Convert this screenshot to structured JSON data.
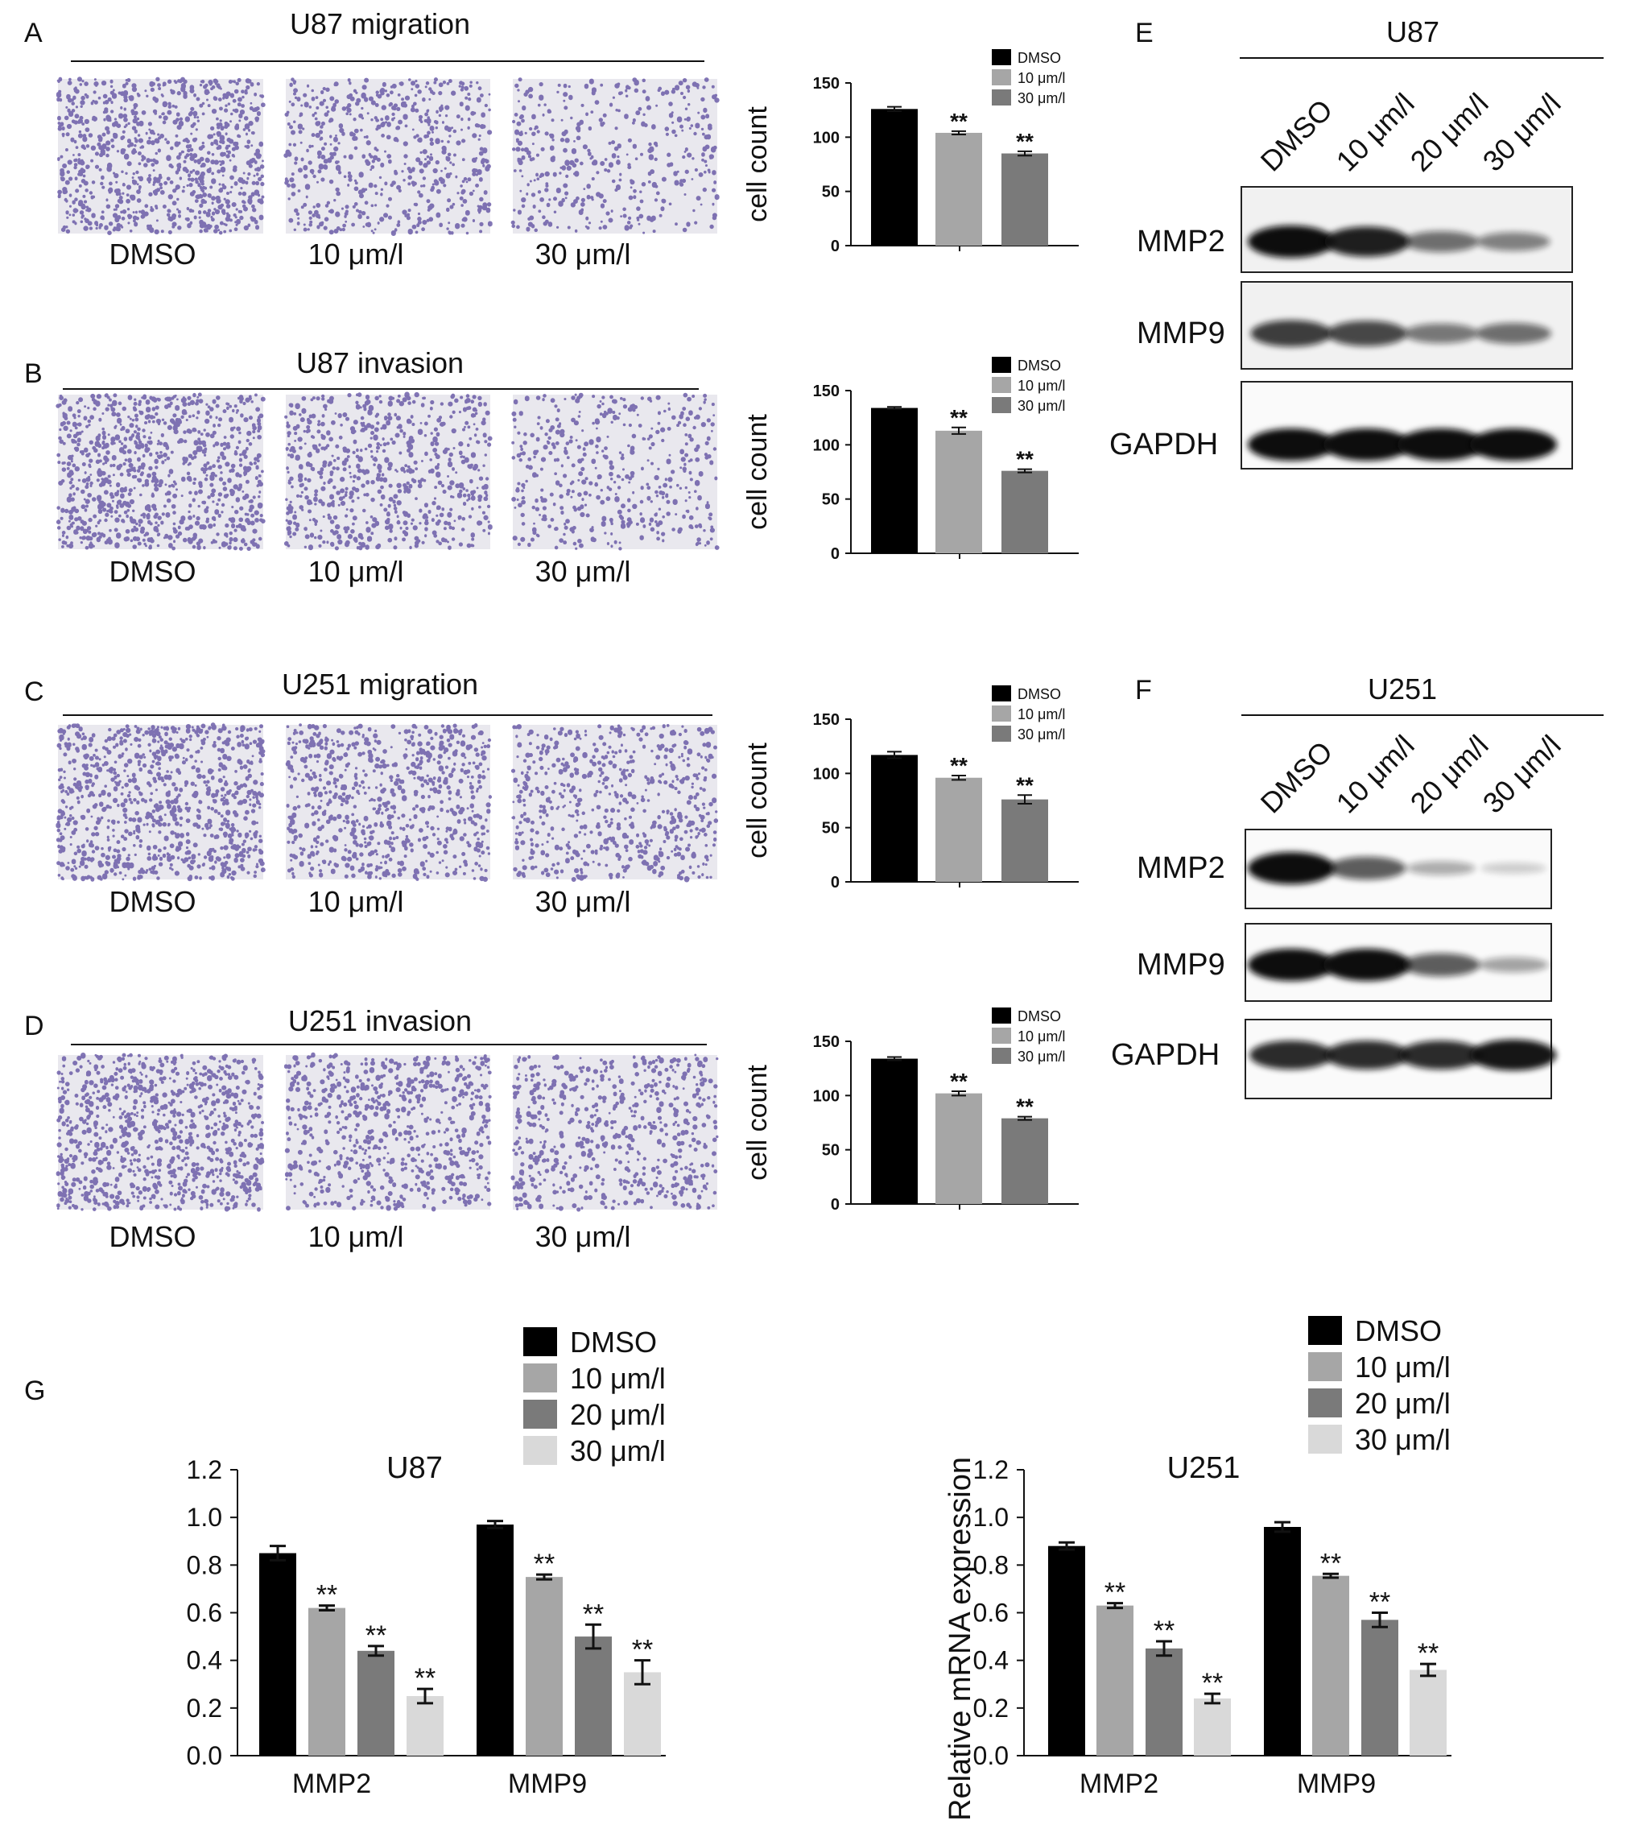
{
  "colors": {
    "dmso": "#000000",
    "c10": "#a6a6a6",
    "c20": "#7a7a7a",
    "c30": "#d9d9d9",
    "c30_small": "#7a7a7a",
    "stain": "#5a4a9e",
    "field_bg": "#e9e8ee"
  },
  "panels": {
    "A": {
      "letter": "A",
      "title": "U87 migration",
      "image_labels": [
        "DMSO",
        "10 μm/l",
        "30 μm/l"
      ],
      "densities": [
        1.0,
        0.65,
        0.45
      ]
    },
    "B": {
      "letter": "B",
      "title": "U87 invasion",
      "image_labels": [
        "DMSO",
        "10 μm/l",
        "30 μm/l"
      ],
      "densities": [
        1.0,
        0.75,
        0.5
      ]
    },
    "C": {
      "letter": "C",
      "title": "U251 migration",
      "image_labels": [
        "DMSO",
        "10 μm/l",
        "30 μm/l"
      ],
      "densities": [
        1.0,
        0.8,
        0.65
      ]
    },
    "D": {
      "letter": "D",
      "title": "U251 invasion",
      "image_labels": [
        "DMSO",
        "10 μm/l",
        "30 μm/l"
      ],
      "densities": [
        1.0,
        0.75,
        0.65
      ]
    },
    "E": {
      "letter": "E",
      "cell_line": "U87",
      "lane_labels": [
        "DMSO",
        "10 μm/l",
        "20 μm/l",
        "30 μm/l"
      ],
      "bands": [
        {
          "name": "MMP2",
          "intensity": [
            1.0,
            0.9,
            0.5,
            0.4
          ]
        },
        {
          "name": "MMP9",
          "intensity": [
            0.75,
            0.7,
            0.45,
            0.5
          ]
        },
        {
          "name": "GAPDH",
          "intensity": [
            1.0,
            1.0,
            1.0,
            1.0
          ]
        }
      ]
    },
    "F": {
      "letter": "F",
      "cell_line": "U251",
      "lane_labels": [
        "DMSO",
        "10 μm/l",
        "20 μm/l",
        "30 μm/l"
      ],
      "bands": [
        {
          "name": "MMP2",
          "intensity": [
            1.0,
            0.6,
            0.2,
            0.05
          ]
        },
        {
          "name": "MMP9",
          "intensity": [
            1.0,
            1.0,
            0.6,
            0.25
          ]
        },
        {
          "name": "GAPDH",
          "intensity": [
            0.85,
            0.85,
            0.85,
            0.95
          ]
        }
      ]
    },
    "G": {
      "letter": "G"
    }
  },
  "chart_data": [
    {
      "panel": "A",
      "type": "bar",
      "ylabel": "cell count",
      "ylim": [
        0,
        150
      ],
      "yticks": [
        0,
        50,
        100,
        150
      ],
      "series": [
        {
          "name": "DMSO",
          "value": 126,
          "error": 2,
          "annotation": ""
        },
        {
          "name": "10 μm/l",
          "value": 104,
          "error": 1.5,
          "annotation": "**"
        },
        {
          "name": "30 μm/l",
          "value": 85,
          "error": 2,
          "annotation": "**"
        }
      ],
      "legend": "top-right"
    },
    {
      "panel": "B",
      "type": "bar",
      "ylabel": "cell count",
      "ylim": [
        0,
        150
      ],
      "yticks": [
        0,
        50,
        100,
        150
      ],
      "series": [
        {
          "name": "DMSO",
          "value": 134,
          "error": 1,
          "annotation": ""
        },
        {
          "name": "10 μm/l",
          "value": 113,
          "error": 3,
          "annotation": "**"
        },
        {
          "name": "30 μm/l",
          "value": 76,
          "error": 1.5,
          "annotation": "**"
        }
      ],
      "legend": "top-right"
    },
    {
      "panel": "C",
      "type": "bar",
      "ylabel": "cell count",
      "ylim": [
        0,
        150
      ],
      "yticks": [
        0,
        50,
        100,
        150
      ],
      "series": [
        {
          "name": "DMSO",
          "value": 117,
          "error": 3,
          "annotation": ""
        },
        {
          "name": "10 μm/l",
          "value": 96,
          "error": 2,
          "annotation": "**"
        },
        {
          "name": "30 μm/l",
          "value": 76,
          "error": 4,
          "annotation": "**"
        }
      ],
      "legend": "top-right"
    },
    {
      "panel": "D",
      "type": "bar",
      "ylabel": "cell count",
      "ylim": [
        0,
        150
      ],
      "yticks": [
        0,
        50,
        100,
        150
      ],
      "series": [
        {
          "name": "DMSO",
          "value": 134,
          "error": 1.5,
          "annotation": ""
        },
        {
          "name": "10 μm/l",
          "value": 102,
          "error": 2,
          "annotation": "**"
        },
        {
          "name": "30 μm/l",
          "value": 79,
          "error": 1.5,
          "annotation": "**"
        }
      ],
      "legend": "top-right"
    },
    {
      "panel": "G-U87",
      "type": "bar",
      "title": "U87",
      "ylabel": "",
      "ylim": [
        0,
        1.2
      ],
      "yticks": [
        "0.0",
        "0.2",
        "0.4",
        "0.6",
        "0.8",
        "1.0",
        "1.2"
      ],
      "categories": [
        "MMP2",
        "MMP9"
      ],
      "series": [
        {
          "name": "DMSO",
          "values": [
            0.85,
            0.97
          ],
          "errors": [
            0.03,
            0.015
          ],
          "annotations": [
            "",
            ""
          ]
        },
        {
          "name": "10 μm/l",
          "values": [
            0.62,
            0.75
          ],
          "errors": [
            0.01,
            0.01
          ],
          "annotations": [
            "**",
            "**"
          ]
        },
        {
          "name": "20 μm/l",
          "values": [
            0.44,
            0.5
          ],
          "errors": [
            0.02,
            0.05
          ],
          "annotations": [
            "**",
            "**"
          ]
        },
        {
          "name": "30 μm/l",
          "values": [
            0.25,
            0.35
          ],
          "errors": [
            0.03,
            0.05
          ],
          "annotations": [
            "**",
            "**"
          ]
        }
      ],
      "legend": "top-center"
    },
    {
      "panel": "G-U251",
      "type": "bar",
      "title": "U251",
      "ylabel": "Relative mRNA expression",
      "ylim": [
        0,
        1.2
      ],
      "yticks": [
        "0.0",
        "0.2",
        "0.4",
        "0.6",
        "0.8",
        "1.0",
        "1.2"
      ],
      "categories": [
        "MMP2",
        "MMP9"
      ],
      "series": [
        {
          "name": "DMSO",
          "values": [
            0.88,
            0.96
          ],
          "errors": [
            0.015,
            0.02
          ],
          "annotations": [
            "",
            ""
          ]
        },
        {
          "name": "10 μm/l",
          "values": [
            0.63,
            0.755
          ],
          "errors": [
            0.01,
            0.008
          ],
          "annotations": [
            "**",
            "**"
          ]
        },
        {
          "name": "20 μm/l",
          "values": [
            0.45,
            0.57
          ],
          "errors": [
            0.03,
            0.03
          ],
          "annotations": [
            "**",
            "**"
          ]
        },
        {
          "name": "30 μm/l",
          "values": [
            0.24,
            0.36
          ],
          "errors": [
            0.02,
            0.025
          ],
          "annotations": [
            "**",
            "**"
          ]
        }
      ],
      "legend": "top-center"
    }
  ]
}
